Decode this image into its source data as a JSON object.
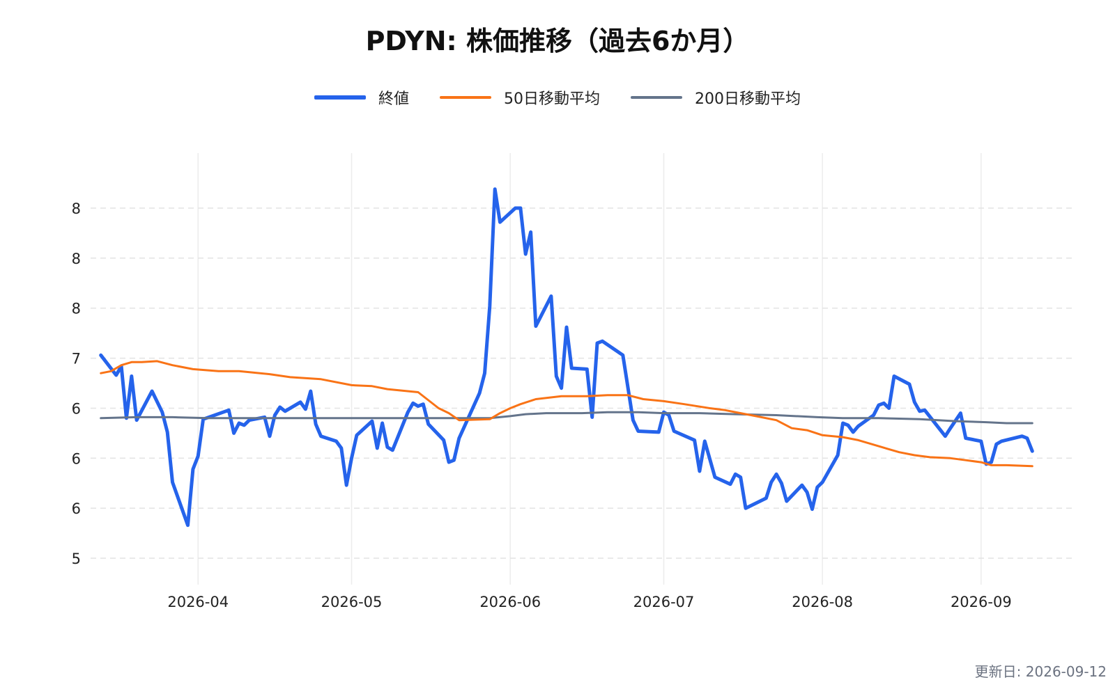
{
  "chart_data": {
    "type": "line",
    "title": "PDYN: 株価推移（過去6か月）",
    "xlabel": "",
    "ylabel": "",
    "x_tick_labels": [
      {
        "date": "2026-04-01",
        "label": "2026-04"
      },
      {
        "date": "2026-05-01",
        "label": "2026-05"
      },
      {
        "date": "2026-06-01",
        "label": "2026-06"
      },
      {
        "date": "2026-07-01",
        "label": "2026-07"
      },
      {
        "date": "2026-08-01",
        "label": "2026-08"
      },
      {
        "date": "2026-09-01",
        "label": "2026-09"
      }
    ],
    "y_tick_labels": [
      {
        "value": 5.0,
        "label": "5"
      },
      {
        "value": 5.5,
        "label": "6"
      },
      {
        "value": 6.0,
        "label": "6"
      },
      {
        "value": 6.5,
        "label": "6"
      },
      {
        "value": 7.0,
        "label": "7"
      },
      {
        "value": 7.5,
        "label": "8"
      },
      {
        "value": 8.0,
        "label": "8"
      },
      {
        "value": 8.5,
        "label": "8"
      }
    ],
    "xlim": [
      "2026-03-11",
      "2026-09-19"
    ],
    "ylim": [
      4.68,
      9.05
    ],
    "grid": {
      "x": true,
      "y": true
    },
    "legend_position": "top-center",
    "series": [
      {
        "name": "終値",
        "color": "#2563eb",
        "points": [
          [
            "2026-03-13",
            7.03
          ],
          [
            "2026-03-16",
            6.83
          ],
          [
            "2026-03-17",
            6.92
          ],
          [
            "2026-03-18",
            6.4
          ],
          [
            "2026-03-19",
            6.82
          ],
          [
            "2026-03-20",
            6.38
          ],
          [
            "2026-03-23",
            6.67
          ],
          [
            "2026-03-25",
            6.46
          ],
          [
            "2026-03-26",
            6.26
          ],
          [
            "2026-03-27",
            5.76
          ],
          [
            "2026-03-30",
            5.33
          ],
          [
            "2026-03-31",
            5.89
          ],
          [
            "2026-04-01",
            6.02
          ],
          [
            "2026-04-02",
            6.39
          ],
          [
            "2026-04-07",
            6.48
          ],
          [
            "2026-04-08",
            6.25
          ],
          [
            "2026-04-09",
            6.35
          ],
          [
            "2026-04-10",
            6.33
          ],
          [
            "2026-04-11",
            6.38
          ],
          [
            "2026-04-14",
            6.41
          ],
          [
            "2026-04-15",
            6.22
          ],
          [
            "2026-04-16",
            6.43
          ],
          [
            "2026-04-17",
            6.51
          ],
          [
            "2026-04-18",
            6.47
          ],
          [
            "2026-04-21",
            6.56
          ],
          [
            "2026-04-22",
            6.49
          ],
          [
            "2026-04-23",
            6.67
          ],
          [
            "2026-04-24",
            6.34
          ],
          [
            "2026-04-25",
            6.22
          ],
          [
            "2026-04-28",
            6.17
          ],
          [
            "2026-04-29",
            6.1
          ],
          [
            "2026-04-30",
            5.73
          ],
          [
            "2026-05-01",
            6.0
          ],
          [
            "2026-05-02",
            6.23
          ],
          [
            "2026-05-05",
            6.37
          ],
          [
            "2026-05-06",
            6.1
          ],
          [
            "2026-05-07",
            6.35
          ],
          [
            "2026-05-08",
            6.11
          ],
          [
            "2026-05-09",
            6.08
          ],
          [
            "2026-05-12",
            6.46
          ],
          [
            "2026-05-13",
            6.55
          ],
          [
            "2026-05-14",
            6.52
          ],
          [
            "2026-05-15",
            6.54
          ],
          [
            "2026-05-16",
            6.34
          ],
          [
            "2026-05-19",
            6.18
          ],
          [
            "2026-05-20",
            5.96
          ],
          [
            "2026-05-21",
            5.98
          ],
          [
            "2026-05-22",
            6.2
          ],
          [
            "2026-05-26",
            6.65
          ],
          [
            "2026-05-27",
            6.85
          ],
          [
            "2026-05-28",
            7.52
          ],
          [
            "2026-05-29",
            8.69
          ],
          [
            "2026-05-30",
            8.36
          ],
          [
            "2026-06-02",
            8.5
          ],
          [
            "2026-06-03",
            8.5
          ],
          [
            "2026-06-04",
            8.04
          ],
          [
            "2026-06-05",
            8.26
          ],
          [
            "2026-06-06",
            7.32
          ],
          [
            "2026-06-09",
            7.62
          ],
          [
            "2026-06-10",
            6.82
          ],
          [
            "2026-06-11",
            6.7
          ],
          [
            "2026-06-12",
            7.31
          ],
          [
            "2026-06-13",
            6.9
          ],
          [
            "2026-06-16",
            6.89
          ],
          [
            "2026-06-17",
            6.41
          ],
          [
            "2026-06-18",
            7.15
          ],
          [
            "2026-06-19",
            7.17
          ],
          [
            "2026-06-23",
            7.03
          ],
          [
            "2026-06-25",
            6.38
          ],
          [
            "2026-06-26",
            6.27
          ],
          [
            "2026-06-30",
            6.26
          ],
          [
            "2026-07-01",
            6.46
          ],
          [
            "2026-07-02",
            6.43
          ],
          [
            "2026-07-03",
            6.27
          ],
          [
            "2026-07-07",
            6.18
          ],
          [
            "2026-07-08",
            5.87
          ],
          [
            "2026-07-09",
            6.17
          ],
          [
            "2026-07-10",
            5.99
          ],
          [
            "2026-07-11",
            5.81
          ],
          [
            "2026-07-14",
            5.74
          ],
          [
            "2026-07-15",
            5.84
          ],
          [
            "2026-07-16",
            5.81
          ],
          [
            "2026-07-17",
            5.5
          ],
          [
            "2026-07-21",
            5.6
          ],
          [
            "2026-07-22",
            5.76
          ],
          [
            "2026-07-23",
            5.84
          ],
          [
            "2026-07-24",
            5.75
          ],
          [
            "2026-07-25",
            5.57
          ],
          [
            "2026-07-28",
            5.73
          ],
          [
            "2026-07-29",
            5.66
          ],
          [
            "2026-07-30",
            5.49
          ],
          [
            "2026-07-31",
            5.71
          ],
          [
            "2026-08-01",
            5.76
          ],
          [
            "2026-08-04",
            6.03
          ],
          [
            "2026-08-05",
            6.35
          ],
          [
            "2026-08-06",
            6.33
          ],
          [
            "2026-08-07",
            6.26
          ],
          [
            "2026-08-08",
            6.32
          ],
          [
            "2026-08-11",
            6.43
          ],
          [
            "2026-08-12",
            6.53
          ],
          [
            "2026-08-13",
            6.55
          ],
          [
            "2026-08-14",
            6.5
          ],
          [
            "2026-08-15",
            6.82
          ],
          [
            "2026-08-18",
            6.74
          ],
          [
            "2026-08-19",
            6.56
          ],
          [
            "2026-08-20",
            6.47
          ],
          [
            "2026-08-21",
            6.48
          ],
          [
            "2026-08-25",
            6.22
          ],
          [
            "2026-08-26",
            6.3
          ],
          [
            "2026-08-28",
            6.45
          ],
          [
            "2026-08-29",
            6.2
          ],
          [
            "2026-09-01",
            6.17
          ],
          [
            "2026-09-02",
            5.94
          ],
          [
            "2026-09-03",
            5.96
          ],
          [
            "2026-09-04",
            6.14
          ],
          [
            "2026-09-05",
            6.17
          ],
          [
            "2026-09-09",
            6.22
          ],
          [
            "2026-09-10",
            6.2
          ],
          [
            "2026-09-11",
            6.07
          ]
        ]
      },
      {
        "name": "50日移動平均",
        "color": "#f97316",
        "points": [
          [
            "2026-03-13",
            6.85
          ],
          [
            "2026-03-15",
            6.87
          ],
          [
            "2026-03-17",
            6.93
          ],
          [
            "2026-03-19",
            6.96
          ],
          [
            "2026-03-21",
            6.96
          ],
          [
            "2026-03-24",
            6.97
          ],
          [
            "2026-03-27",
            6.93
          ],
          [
            "2026-03-31",
            6.89
          ],
          [
            "2026-04-05",
            6.87
          ],
          [
            "2026-04-09",
            6.87
          ],
          [
            "2026-04-15",
            6.84
          ],
          [
            "2026-04-19",
            6.81
          ],
          [
            "2026-04-25",
            6.79
          ],
          [
            "2026-05-01",
            6.73
          ],
          [
            "2026-05-05",
            6.72
          ],
          [
            "2026-05-08",
            6.69
          ],
          [
            "2026-05-14",
            6.66
          ],
          [
            "2026-05-18",
            6.5
          ],
          [
            "2026-05-20",
            6.45
          ],
          [
            "2026-05-22",
            6.38
          ],
          [
            "2026-05-28",
            6.39
          ],
          [
            "2026-05-30",
            6.45
          ],
          [
            "2026-06-01",
            6.5
          ],
          [
            "2026-06-03",
            6.54
          ],
          [
            "2026-06-06",
            6.59
          ],
          [
            "2026-06-11",
            6.62
          ],
          [
            "2026-06-16",
            6.62
          ],
          [
            "2026-06-20",
            6.63
          ],
          [
            "2026-06-24",
            6.63
          ],
          [
            "2026-06-27",
            6.59
          ],
          [
            "2026-07-01",
            6.57
          ],
          [
            "2026-07-05",
            6.54
          ],
          [
            "2026-07-10",
            6.5
          ],
          [
            "2026-07-13",
            6.48
          ],
          [
            "2026-07-16",
            6.45
          ],
          [
            "2026-07-19",
            6.42
          ],
          [
            "2026-07-23",
            6.38
          ],
          [
            "2026-07-26",
            6.3
          ],
          [
            "2026-07-29",
            6.28
          ],
          [
            "2026-08-01",
            6.23
          ],
          [
            "2026-08-05",
            6.21
          ],
          [
            "2026-08-08",
            6.18
          ],
          [
            "2026-08-12",
            6.12
          ],
          [
            "2026-08-16",
            6.06
          ],
          [
            "2026-08-19",
            6.03
          ],
          [
            "2026-08-22",
            6.01
          ],
          [
            "2026-08-26",
            6.0
          ],
          [
            "2026-08-29",
            5.98
          ],
          [
            "2026-09-01",
            5.96
          ],
          [
            "2026-09-03",
            5.93
          ],
          [
            "2026-09-06",
            5.93
          ],
          [
            "2026-09-11",
            5.92
          ]
        ]
      },
      {
        "name": "200日移動平均",
        "color": "#64748b",
        "points": [
          [
            "2026-03-13",
            6.4
          ],
          [
            "2026-03-20",
            6.41
          ],
          [
            "2026-03-27",
            6.41
          ],
          [
            "2026-04-03",
            6.4
          ],
          [
            "2026-04-11",
            6.4
          ],
          [
            "2026-04-20",
            6.4
          ],
          [
            "2026-04-30",
            6.4
          ],
          [
            "2026-05-10",
            6.4
          ],
          [
            "2026-05-20",
            6.4
          ],
          [
            "2026-05-28",
            6.4
          ],
          [
            "2026-06-01",
            6.42
          ],
          [
            "2026-06-04",
            6.44
          ],
          [
            "2026-06-08",
            6.45
          ],
          [
            "2026-06-15",
            6.45
          ],
          [
            "2026-06-20",
            6.46
          ],
          [
            "2026-06-26",
            6.46
          ],
          [
            "2026-07-01",
            6.45
          ],
          [
            "2026-07-08",
            6.45
          ],
          [
            "2026-07-15",
            6.44
          ],
          [
            "2026-07-23",
            6.43
          ],
          [
            "2026-07-31",
            6.41
          ],
          [
            "2026-08-05",
            6.4
          ],
          [
            "2026-08-12",
            6.4
          ],
          [
            "2026-08-20",
            6.39
          ],
          [
            "2026-08-27",
            6.37
          ],
          [
            "2026-09-02",
            6.36
          ],
          [
            "2026-09-06",
            6.35
          ],
          [
            "2026-09-11",
            6.35
          ]
        ]
      }
    ]
  },
  "footer": {
    "updated": "更新日: 2026-09-12"
  }
}
